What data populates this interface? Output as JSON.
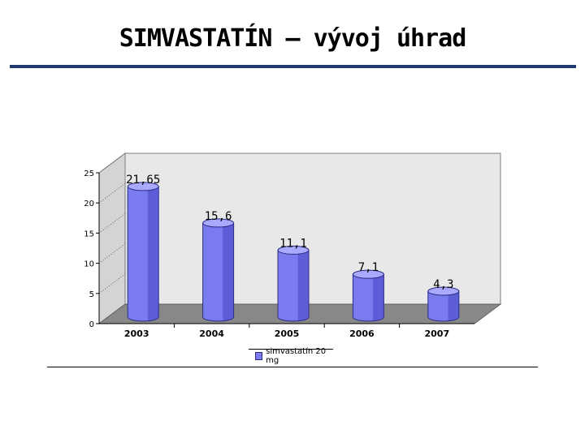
{
  "header": {
    "title": "SIMVASTATÍN – vývoj úhrad"
  },
  "chart_data": {
    "type": "bar",
    "title": "",
    "xlabel": "",
    "ylabel": "",
    "categories": [
      "2003",
      "2004",
      "2005",
      "2006",
      "2007"
    ],
    "series": [
      {
        "name": "simvastatín 20 mg",
        "values": [
          21.65,
          15.6,
          11.1,
          7.1,
          4.3
        ],
        "labels": [
          "21,65",
          "15,6",
          "11,1",
          "7,1",
          "4,3"
        ]
      }
    ],
    "ylim": [
      0,
      25
    ],
    "yticks": [
      "0",
      "5",
      "10",
      "15",
      "20",
      "25"
    ],
    "grid": false,
    "legend_position": "bottom",
    "colors": {
      "bar": "#7b7bf0",
      "bar_dark": "#3a3ab8",
      "bar_top": "#a9a9ff",
      "back_wall": "#e8e8e8",
      "floor": "#888888"
    }
  }
}
